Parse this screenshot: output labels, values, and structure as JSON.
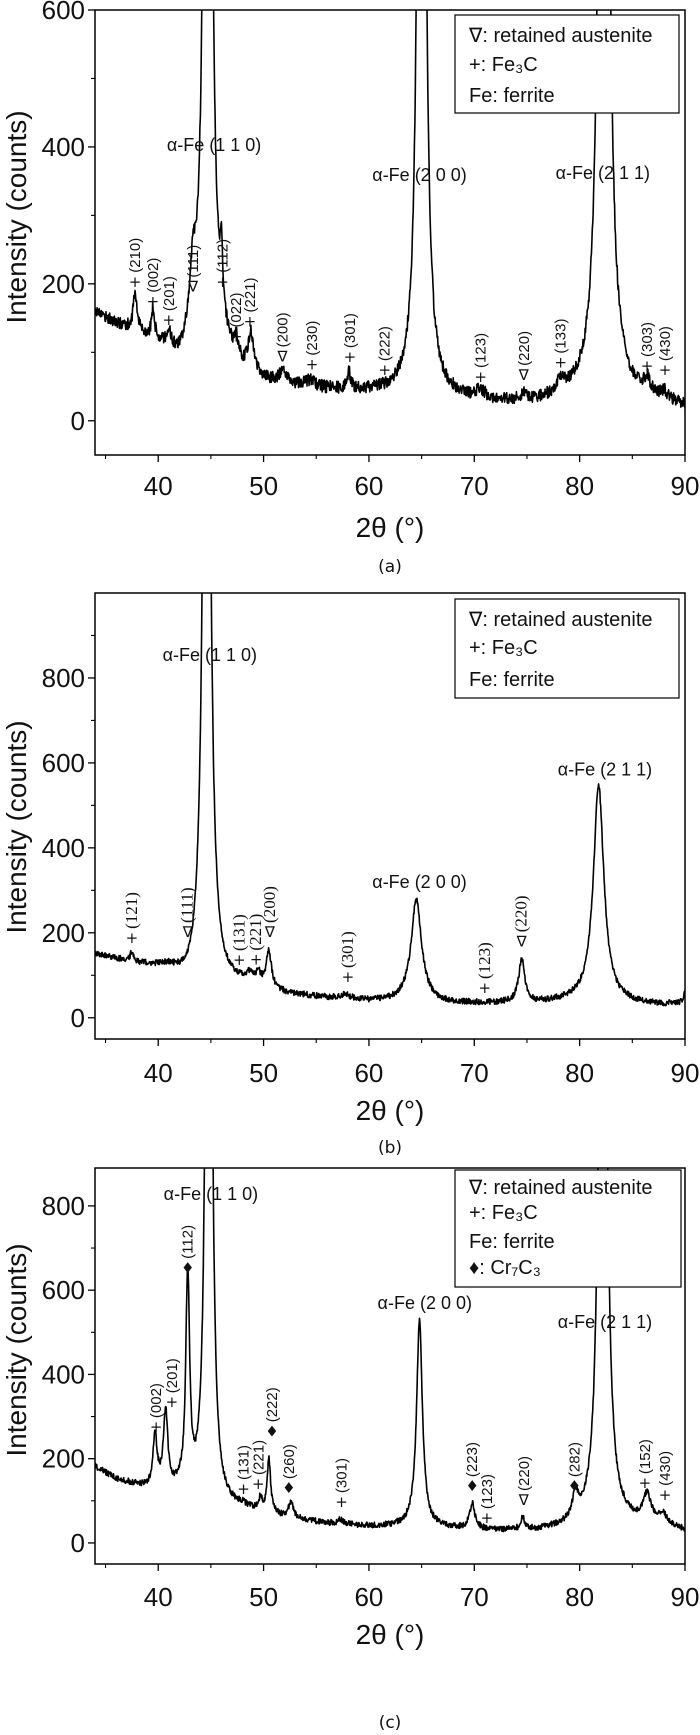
{
  "chart_data": [
    {
      "type": "line",
      "panel": "(a)",
      "xlabel": "2θ (°)",
      "ylabel": "Intensity (counts)",
      "xlim": [
        34,
        90
      ],
      "ylim": [
        -50,
        600
      ],
      "x_ticks": [
        "40",
        "50",
        "60",
        "70",
        "80",
        "90"
      ],
      "y_ticks": [
        "0",
        "200",
        "400",
        "600"
      ],
      "y_tick_values": [
        0,
        200,
        400,
        600
      ],
      "x_tick_values": [
        40,
        50,
        60,
        70,
        80,
        90
      ],
      "legend": [
        "∇: retained austenite",
        "+: Fe₃C",
        "Fe: ferrite"
      ],
      "legend_placement": "top-right",
      "background": [
        [
          34,
          160
        ],
        [
          36,
          140
        ],
        [
          38,
          128
        ],
        [
          40,
          112
        ],
        [
          42,
          82
        ],
        [
          43,
          95
        ],
        [
          46,
          90
        ],
        [
          48,
          70
        ],
        [
          50,
          55
        ],
        [
          55,
          45
        ],
        [
          60,
          40
        ],
        [
          64,
          35
        ],
        [
          68,
          30
        ],
        [
          72,
          25
        ],
        [
          76,
          25
        ],
        [
          80,
          32
        ],
        [
          84,
          32
        ],
        [
          88,
          25
        ],
        [
          90,
          20
        ]
      ],
      "peaks": [
        [
          37.8,
          55,
          0.2
        ],
        [
          39.5,
          42,
          0.15
        ],
        [
          41.0,
          25,
          0.2
        ],
        [
          43.3,
          85,
          0.35
        ],
        [
          44.7,
          3000,
          0.25
        ],
        [
          46.0,
          85,
          0.15
        ],
        [
          47.4,
          25,
          0.15
        ],
        [
          48.8,
          55,
          0.3
        ],
        [
          51.8,
          15,
          0.4
        ],
        [
          54.5,
          10,
          0.5
        ],
        [
          58.1,
          25,
          0.2
        ],
        [
          65.0,
          2500,
          0.28
        ],
        [
          70.6,
          12,
          0.5
        ],
        [
          74.7,
          8,
          0.4
        ],
        [
          78.2,
          18,
          0.4
        ],
        [
          82.3,
          2600,
          0.35
        ],
        [
          86.4,
          20,
          0.35
        ],
        [
          88.0,
          10,
          0.4
        ]
      ],
      "phase_labels": [
        {
          "text": "α-Fe (1 1 0)",
          "x": 45.3,
          "y": 403
        },
        {
          "text": "α-Fe (2 0 0)",
          "x": 64.8,
          "y": 359
        },
        {
          "text": "α-Fe (2 1 1)",
          "x": 82.2,
          "y": 362
        }
      ],
      "annotations": [
        {
          "symbol": "+",
          "label": "(210)",
          "x": 37.8,
          "y": 203
        },
        {
          "symbol": "+",
          "label": "(002)",
          "x": 39.5,
          "y": 174
        },
        {
          "symbol": "+",
          "label": "(201)",
          "x": 41.0,
          "y": 147
        },
        {
          "symbol": "∇",
          "label": "(111)",
          "x": 43.3,
          "y": 196
        },
        {
          "symbol": "+",
          "label": "(112)",
          "x": 46.1,
          "y": 203
        },
        {
          "symbol": "+",
          "label": "(022)",
          "x": 47.4,
          "y": 123
        },
        {
          "symbol": "+",
          "label": "(221)",
          "x": 48.7,
          "y": 145
        },
        {
          "symbol": "∇",
          "label": "(200)",
          "x": 51.8,
          "y": 94
        },
        {
          "symbol": "+",
          "label": "(230)",
          "x": 54.6,
          "y": 82
        },
        {
          "symbol": "+",
          "label": "(301)",
          "x": 58.2,
          "y": 93
        },
        {
          "symbol": "+",
          "label": "(222)",
          "x": 61.5,
          "y": 74
        },
        {
          "symbol": "+",
          "label": "(123)",
          "x": 70.6,
          "y": 64
        },
        {
          "symbol": "∇",
          "label": "(220)",
          "x": 74.7,
          "y": 67
        },
        {
          "symbol": "+",
          "label": "(133)",
          "x": 78.2,
          "y": 85
        },
        {
          "symbol": "+",
          "label": "(303)",
          "x": 86.4,
          "y": 80
        },
        {
          "symbol": "+",
          "label": "(430)",
          "x": 88.1,
          "y": 74
        }
      ]
    },
    {
      "type": "line",
      "panel": "(b)",
      "xlabel": "2θ (°)",
      "ylabel": "Intensity (counts)",
      "xlim": [
        34,
        90
      ],
      "ylim": [
        -50,
        1000
      ],
      "x_ticks": [
        "40",
        "50",
        "60",
        "70",
        "80",
        "90"
      ],
      "y_ticks": [
        "0",
        "200",
        "400",
        "600",
        "800"
      ],
      "y_tick_values": [
        0,
        200,
        400,
        600,
        800
      ],
      "x_tick_values": [
        40,
        50,
        60,
        70,
        80,
        90
      ],
      "legend": [
        "∇: retained austenite",
        "+: Fe₃C",
        "Fe: ferrite"
      ],
      "legend_placement": "top-right",
      "background": [
        [
          34,
          150
        ],
        [
          38,
          125
        ],
        [
          41,
          112
        ],
        [
          43,
          70
        ],
        [
          46,
          70
        ],
        [
          48,
          75
        ],
        [
          50,
          65
        ],
        [
          52,
          55
        ],
        [
          56,
          45
        ],
        [
          60,
          38
        ],
        [
          63,
          38
        ],
        [
          68,
          33
        ],
        [
          72,
          33
        ],
        [
          76,
          33
        ],
        [
          79,
          38
        ],
        [
          84,
          33
        ],
        [
          88,
          30
        ],
        [
          89.7,
          35
        ],
        [
          90,
          60
        ]
      ],
      "peaks": [
        [
          37.5,
          25,
          0.15
        ],
        [
          44.6,
          2600,
          0.33
        ],
        [
          48.7,
          20,
          0.3
        ],
        [
          49.5,
          25,
          0.3
        ],
        [
          50.5,
          85,
          0.3
        ],
        [
          57.8,
          10,
          0.5
        ],
        [
          64.5,
          240,
          0.6
        ],
        [
          74.5,
          100,
          0.35
        ],
        [
          81.8,
          510,
          0.6
        ]
      ],
      "phase_labels": [
        {
          "text": "α-Fe (1 1 0)",
          "x": 44.9,
          "y": 854
        },
        {
          "text": "α-Fe (2 0 0)",
          "x": 64.8,
          "y": 320
        },
        {
          "text": "α-Fe (2 1 1)",
          "x": 82.4,
          "y": 584
        }
      ],
      "annotations": [
        {
          "symbol": "+",
          "label": "(121)",
          "x": 37.5,
          "y": 188
        },
        {
          "symbol": "∇",
          "label": "(111)",
          "x": 42.8,
          "y": 202
        },
        {
          "symbol": "+",
          "label": "(131)",
          "x": 47.7,
          "y": 136
        },
        {
          "symbol": "+",
          "label": "(221)",
          "x": 49.3,
          "y": 137
        },
        {
          "symbol": "∇",
          "label": "(200)",
          "x": 50.6,
          "y": 202
        },
        {
          "symbol": "+",
          "label": "(301)",
          "x": 58.0,
          "y": 96
        },
        {
          "symbol": "+",
          "label": "(123)",
          "x": 71.0,
          "y": 70
        },
        {
          "symbol": "∇",
          "label": "(220)",
          "x": 74.5,
          "y": 180
        }
      ]
    },
    {
      "type": "line",
      "panel": "(c)",
      "xlabel": "2θ (°)",
      "ylabel": "Intensity (counts)",
      "xlim": [
        34,
        90
      ],
      "ylim": [
        -50,
        890
      ],
      "x_ticks": [
        "40",
        "50",
        "60",
        "70",
        "80",
        "90"
      ],
      "y_ticks": [
        "0",
        "200",
        "400",
        "600",
        "800"
      ],
      "y_tick_values": [
        0,
        200,
        400,
        600,
        800
      ],
      "x_tick_values": [
        40,
        50,
        60,
        70,
        80,
        90
      ],
      "legend": [
        "∇: retained austenite",
        "+: Fe₃C",
        "Fe: ferrite",
        "♦: Cr₇C₃"
      ],
      "legend_placement": "top-right",
      "background": [
        [
          34,
          180
        ],
        [
          36,
          150
        ],
        [
          39,
          125
        ],
        [
          42,
          115
        ],
        [
          43.5,
          90
        ],
        [
          46,
          75
        ],
        [
          48,
          80
        ],
        [
          50,
          65
        ],
        [
          53,
          55
        ],
        [
          56,
          45
        ],
        [
          60,
          38
        ],
        [
          64,
          38
        ],
        [
          68,
          33
        ],
        [
          72,
          28
        ],
        [
          76,
          28
        ],
        [
          80,
          35
        ],
        [
          84,
          42
        ],
        [
          88,
          38
        ],
        [
          90,
          28
        ]
      ],
      "peaks": [
        [
          39.7,
          120,
          0.25
        ],
        [
          40.7,
          180,
          0.25
        ],
        [
          42.8,
          510,
          0.22
        ],
        [
          44.8,
          3000,
          0.25
        ],
        [
          49.7,
          30,
          0.2
        ],
        [
          50.5,
          130,
          0.2
        ],
        [
          52.6,
          40,
          0.25
        ],
        [
          57.3,
          10,
          0.3
        ],
        [
          64.8,
          490,
          0.33
        ],
        [
          69.8,
          60,
          0.3
        ],
        [
          74.6,
          30,
          0.2
        ],
        [
          79.6,
          55,
          0.35
        ],
        [
          82.2,
          2600,
          0.33
        ],
        [
          86.4,
          65,
          0.45
        ],
        [
          87.9,
          25,
          0.4
        ]
      ],
      "phase_labels": [
        {
          "text": "α-Fe (1 1 0)",
          "x": 45.0,
          "y": 828
        },
        {
          "text": "α-Fe (2 0 0)",
          "x": 65.3,
          "y": 570
        },
        {
          "text": "α-Fe (2 1 1)",
          "x": 82.4,
          "y": 525
        }
      ],
      "annotations": [
        {
          "symbol": "+",
          "label": "(002)",
          "x": 39.8,
          "y": 275
        },
        {
          "symbol": "+",
          "label": "(201)",
          "x": 41.3,
          "y": 334
        },
        {
          "symbol": "♦",
          "label": "(112)",
          "x": 42.8,
          "y": 653
        },
        {
          "symbol": "+",
          "label": "(131)",
          "x": 48.1,
          "y": 128
        },
        {
          "symbol": "+",
          "label": "(221)",
          "x": 49.5,
          "y": 140
        },
        {
          "symbol": "♦",
          "label": "(222)",
          "x": 50.8,
          "y": 265
        },
        {
          "symbol": "♦",
          "label": "(260)",
          "x": 52.4,
          "y": 130
        },
        {
          "symbol": "+",
          "label": "(301)",
          "x": 57.4,
          "y": 97
        },
        {
          "symbol": "♦",
          "label": "(223)",
          "x": 69.8,
          "y": 135
        },
        {
          "symbol": "+",
          "label": "(123)",
          "x": 71.2,
          "y": 59
        },
        {
          "symbol": "∇",
          "label": "(220)",
          "x": 74.7,
          "y": 102
        },
        {
          "symbol": "♦",
          "label": "(282)",
          "x": 79.5,
          "y": 135
        },
        {
          "symbol": "+",
          "label": "(152)",
          "x": 86.2,
          "y": 142
        },
        {
          "symbol": "+",
          "label": "(430)",
          "x": 88.1,
          "y": 114
        }
      ]
    }
  ],
  "colors": {
    "line": "#000000",
    "text": "#111111",
    "background": "#ffffff"
  }
}
